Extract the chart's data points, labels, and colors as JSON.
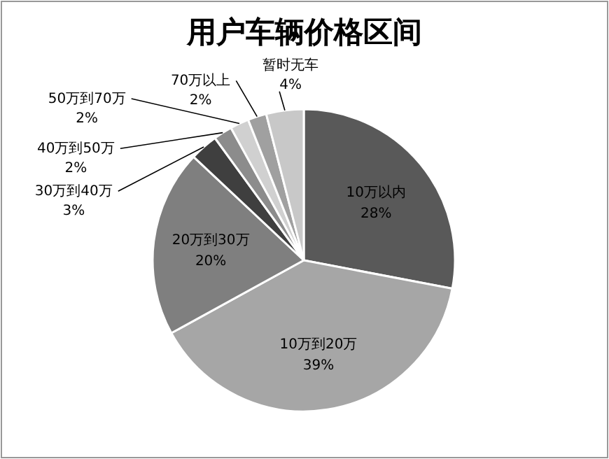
{
  "chart_data": {
    "type": "pie",
    "title": "用户车辆价格区间",
    "categories": [
      "10万以内",
      "10万到20万",
      "20万到30万",
      "30万到40万",
      "40万到50万",
      "50万到70万",
      "70万以上",
      "暂时无车"
    ],
    "values": [
      28,
      39,
      20,
      3,
      2,
      2,
      2,
      4
    ],
    "value_labels": [
      "28%",
      "39%",
      "20%",
      "3%",
      "2%",
      "2%",
      "2%",
      "4%"
    ],
    "colors": [
      "#595959",
      "#a6a6a6",
      "#7f7f7f",
      "#3f3f3f",
      "#8c8c8c",
      "#d0d0d0",
      "#a0a0a0",
      "#c8c8c8"
    ]
  }
}
